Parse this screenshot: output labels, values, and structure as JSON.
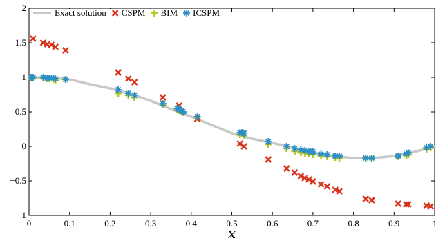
{
  "chart_data": {
    "type": "scatter",
    "title": "",
    "xlabel": "x",
    "ylabel": "",
    "xlim": [
      0,
      1
    ],
    "ylim": [
      -1,
      2
    ],
    "xticks": [
      "0",
      "0.1",
      "0.2",
      "0.3",
      "0.4",
      "0.5",
      "0.6",
      "0.7",
      "0.8",
      "0.9",
      "1"
    ],
    "yticks": [
      "−1",
      "−0.5",
      "0",
      "0.5",
      "1",
      "1.5",
      "2"
    ],
    "legend_position": "top-left",
    "grid": false,
    "series": [
      {
        "name": "Exact solution",
        "kind": "line",
        "color": "#c8c8c8",
        "x": [
          0,
          0.05,
          0.1,
          0.15,
          0.2,
          0.25,
          0.3,
          0.35,
          0.4,
          0.45,
          0.5,
          0.55,
          0.6,
          0.65,
          0.7,
          0.75,
          0.8,
          0.85,
          0.9,
          0.95,
          1.0
        ],
        "y": [
          1.0,
          1.0,
          0.97,
          0.9,
          0.84,
          0.76,
          0.66,
          0.54,
          0.43,
          0.31,
          0.19,
          0.11,
          0.05,
          -0.02,
          -0.09,
          -0.14,
          -0.17,
          -0.17,
          -0.14,
          -0.08,
          0.0
        ]
      },
      {
        "name": "CSPM",
        "kind": "marker",
        "marker": "x",
        "color": "#d8321a",
        "x": [
          0.01,
          0.035,
          0.045,
          0.055,
          0.065,
          0.09,
          0.22,
          0.245,
          0.26,
          0.33,
          0.37,
          0.415,
          0.52,
          0.53,
          0.59,
          0.635,
          0.655,
          0.67,
          0.68,
          0.69,
          0.7,
          0.72,
          0.735,
          0.755,
          0.765,
          0.83,
          0.845,
          0.91,
          0.93,
          0.935,
          0.98,
          0.99
        ],
        "y": [
          1.56,
          1.5,
          1.48,
          1.47,
          1.44,
          1.39,
          1.07,
          0.98,
          0.93,
          0.71,
          0.59,
          0.4,
          0.04,
          0.0,
          -0.19,
          -0.32,
          -0.38,
          -0.43,
          -0.46,
          -0.48,
          -0.51,
          -0.55,
          -0.58,
          -0.63,
          -0.65,
          -0.76,
          -0.78,
          -0.83,
          -0.84,
          -0.84,
          -0.86,
          -0.87
        ]
      },
      {
        "name": "BIM",
        "kind": "marker",
        "marker": "plus",
        "color": "#b6c61a",
        "x": [
          0.005,
          0.01,
          0.035,
          0.045,
          0.05,
          0.06,
          0.065,
          0.09,
          0.22,
          0.245,
          0.26,
          0.33,
          0.365,
          0.37,
          0.38,
          0.415,
          0.52,
          0.525,
          0.53,
          0.59,
          0.635,
          0.655,
          0.67,
          0.68,
          0.69,
          0.7,
          0.72,
          0.735,
          0.755,
          0.765,
          0.83,
          0.845,
          0.91,
          0.93,
          0.935,
          0.98,
          0.99
        ],
        "y": [
          0.99,
          0.99,
          0.99,
          0.98,
          0.98,
          0.97,
          0.96,
          0.97,
          0.77,
          0.74,
          0.71,
          0.6,
          0.53,
          0.52,
          0.49,
          0.42,
          0.17,
          0.18,
          0.16,
          0.03,
          -0.03,
          -0.07,
          -0.09,
          -0.1,
          -0.11,
          -0.12,
          -0.14,
          -0.15,
          -0.16,
          -0.17,
          -0.18,
          -0.18,
          -0.15,
          -0.13,
          -0.12,
          -0.04,
          -0.02
        ]
      },
      {
        "name": "ICSPM",
        "kind": "marker",
        "marker": "asterisk",
        "color": "#2a8fc9",
        "x": [
          0.005,
          0.01,
          0.035,
          0.045,
          0.05,
          0.06,
          0.065,
          0.09,
          0.22,
          0.245,
          0.26,
          0.33,
          0.365,
          0.37,
          0.38,
          0.415,
          0.52,
          0.525,
          0.53,
          0.59,
          0.635,
          0.655,
          0.67,
          0.68,
          0.69,
          0.7,
          0.72,
          0.735,
          0.755,
          0.765,
          0.83,
          0.845,
          0.91,
          0.93,
          0.935,
          0.98,
          0.99
        ],
        "y": [
          1.0,
          1.0,
          1.0,
          0.99,
          0.99,
          0.99,
          0.98,
          0.97,
          0.82,
          0.77,
          0.74,
          0.62,
          0.55,
          0.54,
          0.5,
          0.43,
          0.2,
          0.2,
          0.19,
          0.07,
          0.0,
          -0.03,
          -0.05,
          -0.06,
          -0.07,
          -0.08,
          -0.11,
          -0.12,
          -0.14,
          -0.14,
          -0.17,
          -0.17,
          -0.14,
          -0.11,
          -0.09,
          -0.02,
          0.0
        ]
      }
    ]
  }
}
